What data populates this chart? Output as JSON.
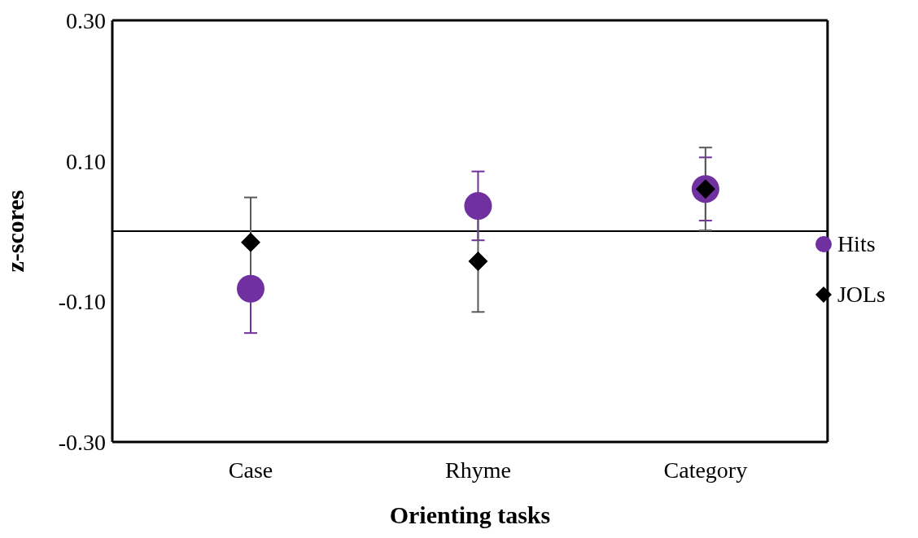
{
  "chart_data": {
    "type": "scatter",
    "xlabel": "Orienting tasks",
    "ylabel": "z-scores",
    "categories": [
      "Case",
      "Rhyme",
      "Category"
    ],
    "series": [
      {
        "name": "Hits",
        "color": "#7030a0",
        "marker": "circle",
        "values": [
          -0.082,
          0.036,
          0.06
        ],
        "errors": [
          0.063,
          0.049,
          0.045
        ]
      },
      {
        "name": "JOLs",
        "color": "#000000",
        "marker": "diamond",
        "values": [
          -0.016,
          -0.043,
          0.06
        ],
        "errors": [
          0.064,
          0.072,
          0.059
        ]
      }
    ],
    "ylim": [
      -0.3,
      0.3
    ],
    "yticks": [
      {
        "value": -0.3,
        "label": "-0.30"
      },
      {
        "value": -0.1,
        "label": "-0.10"
      },
      {
        "value": 0.1,
        "label": "0.10"
      },
      {
        "value": 0.3,
        "label": "0.30"
      }
    ],
    "ref_lines": [
      {
        "axis": "y",
        "value": 0,
        "color": "#000000"
      }
    ],
    "grid": false,
    "legend": "right"
  }
}
